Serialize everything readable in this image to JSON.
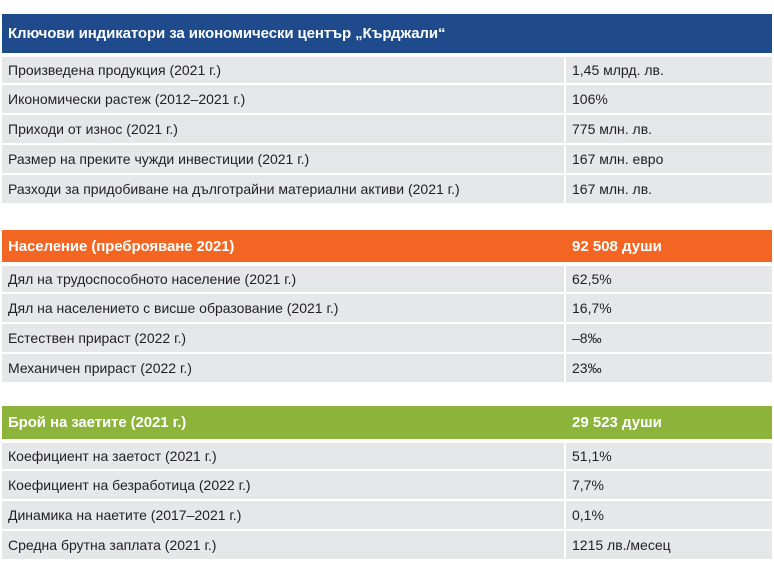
{
  "sections": [
    {
      "title": "Ключови индикатори за икономически център „Кърджали“",
      "value": "",
      "color": "#1f4a8c",
      "rows": [
        {
          "label": "Произведена продукция (2021 г.)",
          "value": "1,45 млрд. лв."
        },
        {
          "label": "Икономически растеж (2012–2021 г.)",
          "value": "106%"
        },
        {
          "label": "Приходи от износ (2021 г.)",
          "value": "775 млн. лв."
        },
        {
          "label": "Размер на преките чужди инвестиции (2021 г.)",
          "value": "167 млн. евро"
        },
        {
          "label": "Разходи за придобиване на дълготрайни материални активи (2021 г.)",
          "value": "167 млн. лв."
        }
      ]
    },
    {
      "title": "Население (преброяване 2021)",
      "value": "92 508 души",
      "color": "#f26522",
      "rows": [
        {
          "label": "Дял на трудоспособното население (2021 г.)",
          "value": "62,5%"
        },
        {
          "label": "Дял на населението с висше образование (2021 г.)",
          "value": "16,7%"
        },
        {
          "label": "Естествен прираст (2022 г.)",
          "value": "–8‰"
        },
        {
          "label": "Механичен прираст (2022 г.)",
          "value": "23‰"
        }
      ]
    },
    {
      "title": "Брой на заетите (2021 г.)",
      "value": "29 523 души",
      "color": "#8cb43a",
      "rows": [
        {
          "label": "Коефициент на заетост (2021 г.)",
          "value": "51,1%"
        },
        {
          "label": "Коефициент на безработица (2022 г.)",
          "value": "7,7%"
        },
        {
          "label": "Динамика на наетите (2017–2021 г.)",
          "value": "0,1%"
        },
        {
          "label": "Средна брутна заплата (2021 г.)",
          "value": "1215 лв./месец"
        }
      ]
    }
  ]
}
